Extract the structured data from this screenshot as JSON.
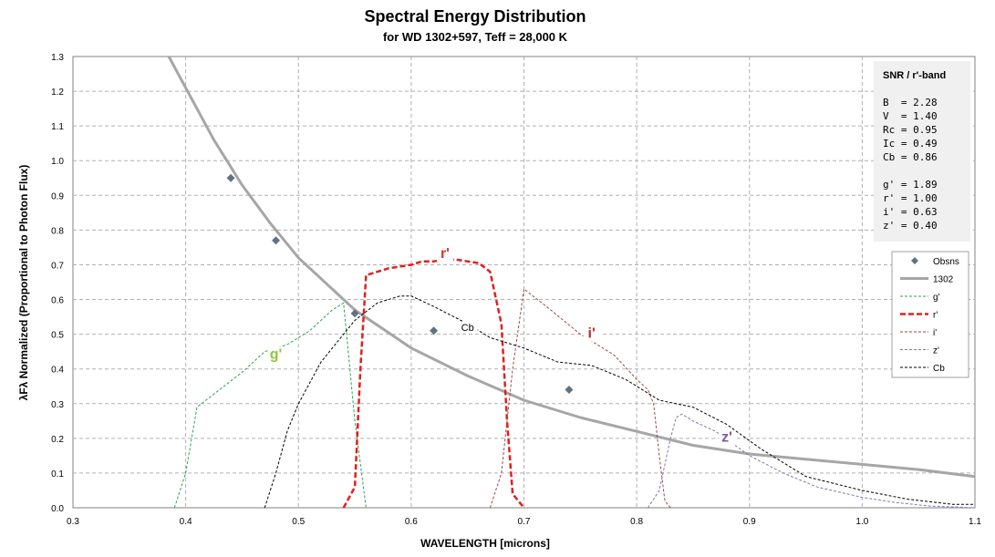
{
  "chart_data": {
    "type": "line",
    "title": "Spectral Energy Distribution",
    "subtitle": "for WD 1302+597,  Teff = 28,000 K",
    "xlabel": "WAVELENGTH  [microns]",
    "ylabel": "λFλ Normalized (Proportional to Photon Flux)",
    "xlim": [
      0.3,
      1.1
    ],
    "ylim": [
      0.0,
      1.3
    ],
    "x_ticks": [
      "0.3",
      "0.4",
      "0.5",
      "0.6",
      "0.7",
      "0.8",
      "0.9",
      "1.0",
      "1.1"
    ],
    "y_ticks": [
      "0.0",
      "0.1",
      "0.2",
      "0.3",
      "0.4",
      "0.5",
      "0.6",
      "0.7",
      "0.8",
      "0.9",
      "1.0",
      "1.1",
      "1.2",
      "1.3"
    ],
    "grid": true,
    "legend_position": "right",
    "series": [
      {
        "name": "Obsns",
        "kind": "scatter",
        "color": "#5f7382",
        "x": [
          0.44,
          0.48,
          0.55,
          0.62,
          0.74
        ],
        "y": [
          0.95,
          0.77,
          0.56,
          0.51,
          0.34
        ]
      },
      {
        "name": "1302",
        "kind": "line",
        "color": "#a6a6a6",
        "x": [
          0.385,
          0.4,
          0.425,
          0.45,
          0.475,
          0.5,
          0.55,
          0.6,
          0.65,
          0.7,
          0.75,
          0.8,
          0.85,
          0.9,
          0.95,
          1.0,
          1.05,
          1.1
        ],
        "y": [
          1.3,
          1.21,
          1.06,
          0.93,
          0.82,
          0.72,
          0.57,
          0.46,
          0.38,
          0.31,
          0.26,
          0.22,
          0.18,
          0.155,
          0.14,
          0.125,
          0.11,
          0.09
        ]
      },
      {
        "name": "g'",
        "kind": "line",
        "color": "#2aa44f",
        "x": [
          0.39,
          0.4,
          0.41,
          0.43,
          0.45,
          0.47,
          0.49,
          0.51,
          0.53,
          0.54,
          0.55,
          0.56
        ],
        "y": [
          0.0,
          0.1,
          0.29,
          0.34,
          0.39,
          0.45,
          0.47,
          0.51,
          0.57,
          0.59,
          0.25,
          0.0
        ]
      },
      {
        "name": "r'",
        "kind": "line",
        "color": "#e02020",
        "x": [
          0.54,
          0.55,
          0.555,
          0.56,
          0.58,
          0.6,
          0.61,
          0.62,
          0.63,
          0.64,
          0.65,
          0.66,
          0.67,
          0.68,
          0.685,
          0.69,
          0.7
        ],
        "y": [
          0.0,
          0.06,
          0.4,
          0.67,
          0.69,
          0.7,
          0.71,
          0.71,
          0.715,
          0.715,
          0.71,
          0.705,
          0.68,
          0.53,
          0.25,
          0.04,
          0.0
        ]
      },
      {
        "name": "i'",
        "kind": "line",
        "color": "#9a4a4a",
        "x": [
          0.67,
          0.68,
          0.69,
          0.7,
          0.72,
          0.75,
          0.78,
          0.8,
          0.81,
          0.815,
          0.82,
          0.825,
          0.83
        ],
        "y": [
          0.0,
          0.1,
          0.4,
          0.63,
          0.58,
          0.5,
          0.44,
          0.37,
          0.34,
          0.3,
          0.15,
          0.02,
          0.0
        ]
      },
      {
        "name": "z'",
        "kind": "line",
        "color": "#8a70b0",
        "x": [
          0.81,
          0.82,
          0.83,
          0.835,
          0.84,
          0.85,
          0.87,
          0.9,
          0.93,
          0.96,
          1.0,
          1.03,
          1.06,
          1.1
        ],
        "y": [
          0.0,
          0.05,
          0.2,
          0.26,
          0.27,
          0.25,
          0.22,
          0.15,
          0.1,
          0.06,
          0.03,
          0.015,
          0.005,
          0.0
        ]
      },
      {
        "name": "Cb",
        "kind": "line",
        "color": "#000000",
        "x": [
          0.47,
          0.48,
          0.49,
          0.5,
          0.52,
          0.54,
          0.55,
          0.57,
          0.59,
          0.6,
          0.62,
          0.65,
          0.67,
          0.7,
          0.73,
          0.76,
          0.79,
          0.82,
          0.85,
          0.88,
          0.91,
          0.95,
          1.0,
          1.04,
          1.08,
          1.1
        ],
        "y": [
          0.0,
          0.1,
          0.22,
          0.3,
          0.42,
          0.5,
          0.54,
          0.59,
          0.61,
          0.61,
          0.58,
          0.53,
          0.49,
          0.46,
          0.42,
          0.41,
          0.37,
          0.31,
          0.29,
          0.24,
          0.17,
          0.09,
          0.05,
          0.025,
          0.01,
          0.01
        ]
      }
    ],
    "annotations": [
      {
        "text": "g'",
        "x": 0.48,
        "y": 0.43,
        "color": "#8ec63f"
      },
      {
        "text": "r'",
        "x": 0.63,
        "y": 0.72,
        "color": "#d63a2a"
      },
      {
        "text": "Cb",
        "x": 0.65,
        "y": 0.51,
        "color": "#000000"
      },
      {
        "text": "i'",
        "x": 0.76,
        "y": 0.49,
        "color": "#b03030"
      },
      {
        "text": "z'",
        "x": 0.88,
        "y": 0.19,
        "color": "#7a5a9a"
      }
    ],
    "snr_box": {
      "title": "SNR / r'-band",
      "lines_group1": [
        "B  = 2.28",
        "V  = 1.40",
        "Rc = 0.95",
        "Ic = 0.49",
        "Cb = 0.86"
      ],
      "lines_group2": [
        "g' = 1.89",
        "r' = 1.00",
        "i' = 0.63",
        "z' = 0.40"
      ]
    }
  }
}
